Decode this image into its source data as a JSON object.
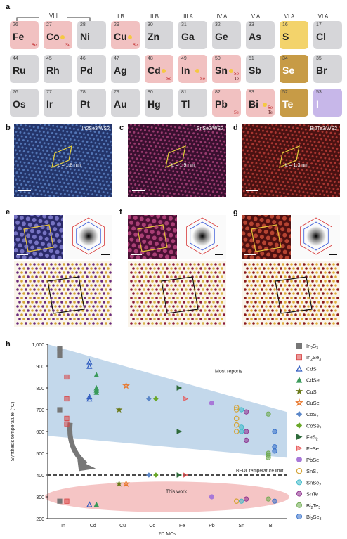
{
  "panel_labels": {
    "a": "a",
    "b": "b",
    "c": "c",
    "d": "d",
    "e": "e",
    "f": "f",
    "g": "g",
    "h": "h"
  },
  "periodic_table": {
    "group_headers": [
      "VIII",
      "I B",
      "II B",
      "III A",
      "IV A",
      "V A",
      "VI A",
      "VI A"
    ],
    "rows": [
      [
        {
          "num": "26",
          "sym": "Fe",
          "color": "pink",
          "marks": [
            "Se"
          ],
          "star": false
        },
        {
          "num": "27",
          "sym": "Co",
          "color": "pink",
          "marks": [
            "Se"
          ],
          "star": true
        },
        {
          "num": "28",
          "sym": "Ni",
          "color": "gray",
          "marks": [],
          "star": false
        },
        {
          "num": "29",
          "sym": "Cu",
          "color": "pink",
          "marks": [
            "Se"
          ],
          "star": true
        },
        {
          "num": "30",
          "sym": "Zn",
          "color": "gray",
          "marks": [],
          "star": false
        },
        {
          "num": "31",
          "sym": "Ga",
          "color": "gray",
          "marks": [],
          "star": false
        },
        {
          "num": "32",
          "sym": "Ge",
          "color": "gray",
          "marks": [],
          "star": false
        },
        {
          "num": "33",
          "sym": "As",
          "color": "gray",
          "marks": [],
          "star": false
        },
        {
          "num": "16",
          "sym": "S",
          "color": "yellow",
          "marks": [],
          "star": false
        },
        {
          "num": "17",
          "sym": "Cl",
          "color": "gray",
          "marks": [],
          "star": false
        }
      ],
      [
        {
          "num": "44",
          "sym": "Ru",
          "color": "gray",
          "marks": [],
          "star": false
        },
        {
          "num": "45",
          "sym": "Rh",
          "color": "gray",
          "marks": [],
          "star": false
        },
        {
          "num": "46",
          "sym": "Pd",
          "color": "gray",
          "marks": [],
          "star": false
        },
        {
          "num": "47",
          "sym": "Ag",
          "color": "gray",
          "marks": [],
          "star": false
        },
        {
          "num": "48",
          "sym": "Cd",
          "color": "pink",
          "marks": [
            "Se"
          ],
          "star": true
        },
        {
          "num": "49",
          "sym": "In",
          "color": "pink",
          "marks": [
            "Se"
          ],
          "star": true
        },
        {
          "num": "50",
          "sym": "Sn",
          "color": "pink",
          "marks": [
            "Se",
            "Te"
          ],
          "star": true
        },
        {
          "num": "51",
          "sym": "Sb",
          "color": "gray",
          "marks": [],
          "star": false
        },
        {
          "num": "34",
          "sym": "Se",
          "color": "gold",
          "marks": [],
          "star": false
        },
        {
          "num": "35",
          "sym": "Br",
          "color": "gray",
          "marks": [],
          "star": false
        }
      ],
      [
        {
          "num": "76",
          "sym": "Os",
          "color": "gray",
          "marks": [],
          "star": false
        },
        {
          "num": "77",
          "sym": "Ir",
          "color": "gray",
          "marks": [],
          "star": false
        },
        {
          "num": "78",
          "sym": "Pt",
          "color": "gray",
          "marks": [],
          "star": false
        },
        {
          "num": "79",
          "sym": "Au",
          "color": "gray",
          "marks": [],
          "star": false
        },
        {
          "num": "80",
          "sym": "Hg",
          "color": "gray",
          "marks": [],
          "star": false
        },
        {
          "num": "81",
          "sym": "Tl",
          "color": "gray",
          "marks": [],
          "star": false
        },
        {
          "num": "82",
          "sym": "Pb",
          "color": "pink",
          "marks": [
            "Se"
          ],
          "star": false
        },
        {
          "num": "83",
          "sym": "Bi",
          "color": "pink",
          "marks": [
            "Se",
            "Te"
          ],
          "star": true
        },
        {
          "num": "52",
          "sym": "Te",
          "color": "gold",
          "marks": [],
          "star": false
        },
        {
          "num": "53",
          "sym": "I",
          "color": "purple",
          "marks": [],
          "star": false
        }
      ]
    ]
  },
  "micro_row1": [
    {
      "label": "In2Se3/WS2",
      "lattice": "L = 1.8 nm",
      "color1": "#24356b",
      "color2": "#5e86c8"
    },
    {
      "label": "SnSe2/WS2",
      "lattice": "L = 1.9 nm",
      "color1": "#3a1030",
      "color2": "#b0457e"
    },
    {
      "label": "Bi2Te3/WS2",
      "lattice": "L = 1.3 nm",
      "color1": "#4a1212",
      "color2": "#c0403a"
    }
  ],
  "micro_row2": [
    {
      "color1": "#2a2a6a",
      "color2": "#8a86d8",
      "atom": "#d4a437",
      "atom2": "#6a2a7a"
    },
    {
      "color1": "#4a1034",
      "color2": "#c04a86",
      "atom": "#d8b34a",
      "atom2": "#8a1c3a"
    },
    {
      "color1": "#4e1010",
      "color2": "#d0503a",
      "atom": "#e0ad3a",
      "atom2": "#8a1a1a"
    }
  ],
  "chart_data": {
    "type": "scatter",
    "xlabel": "2D MCs",
    "ylabel": "Synthesis temperature (°C)",
    "categories": [
      "In",
      "Cd",
      "Cu",
      "Co",
      "Fe",
      "Pb",
      "Sn",
      "Bi"
    ],
    "ylim": [
      200,
      1000
    ],
    "yticks": [
      200,
      300,
      400,
      500,
      600,
      700,
      800,
      900,
      1000
    ],
    "yticklabels": [
      "200",
      "300",
      "400",
      "500",
      "600",
      "700",
      "800",
      "900",
      "1,000"
    ],
    "annotations": [
      "Most reports",
      "BEOL temperature limit",
      "This work"
    ],
    "beol_limit": 400,
    "series": [
      {
        "name": "In2S3",
        "color": "#777777",
        "marker": "square",
        "points": [
          [
            "In",
            980
          ],
          [
            "In",
            970
          ],
          [
            "In",
            950
          ],
          [
            "In",
            700
          ],
          [
            "In",
            280
          ]
        ]
      },
      {
        "name": "In2Se3",
        "color": "#d94545",
        "marker": "halfsquare",
        "points": [
          [
            "In",
            850
          ],
          [
            "In",
            750
          ],
          [
            "In",
            660
          ],
          [
            "In",
            635
          ],
          [
            "In",
            280
          ]
        ]
      },
      {
        "name": "CdS",
        "color": "#2f5bbf",
        "marker": "triangle-open",
        "points": [
          [
            "Cd",
            920
          ],
          [
            "Cd",
            900
          ],
          [
            "Cd",
            760
          ],
          [
            "Cd",
            750
          ],
          [
            "Cd",
            265
          ]
        ]
      },
      {
        "name": "CdSe",
        "color": "#3a9a5a",
        "marker": "triangle",
        "points": [
          [
            "Cd",
            860
          ],
          [
            "Cd",
            800
          ],
          [
            "Cd",
            790
          ],
          [
            "Cd",
            780
          ],
          [
            "Cd",
            265
          ]
        ]
      },
      {
        "name": "CuS",
        "color": "#6b7a1a",
        "marker": "star",
        "points": [
          [
            "Cu",
            700
          ],
          [
            "Cu",
            360
          ]
        ]
      },
      {
        "name": "CuSe",
        "color": "#e8762a",
        "marker": "star-open",
        "points": [
          [
            "Cu",
            810
          ],
          [
            "Cu",
            360
          ]
        ]
      },
      {
        "name": "CoS2",
        "color": "#5b87c8",
        "marker": "diamond",
        "points": [
          [
            "Co",
            750
          ],
          [
            "Co",
            400
          ]
        ]
      },
      {
        "name": "CoSe2",
        "color": "#6aa82a",
        "marker": "diamond",
        "points": [
          [
            "Co",
            750
          ],
          [
            "Co",
            400
          ]
        ]
      },
      {
        "name": "FeS2",
        "color": "#2e6b3a",
        "marker": "triangle-right",
        "points": [
          [
            "Fe",
            800
          ],
          [
            "Fe",
            600
          ],
          [
            "Fe",
            400
          ]
        ]
      },
      {
        "name": "FeSe",
        "color": "#e85050",
        "marker": "triangle-right-half",
        "points": [
          [
            "Fe",
            750
          ],
          [
            "Fe",
            400
          ]
        ]
      },
      {
        "name": "PbSe",
        "color": "#a878d8",
        "marker": "circle",
        "points": [
          [
            "Pb",
            730
          ],
          [
            "Pb",
            300
          ]
        ]
      },
      {
        "name": "SnS2",
        "color": "#d4a437",
        "marker": "circle-open",
        "points": [
          [
            "Sn",
            710
          ],
          [
            "Sn",
            700
          ],
          [
            "Sn",
            660
          ],
          [
            "Sn",
            630
          ],
          [
            "Sn",
            600
          ],
          [
            "Sn",
            280
          ]
        ]
      },
      {
        "name": "SnSe2",
        "color": "#3ab8c8",
        "marker": "halfcircle",
        "points": [
          [
            "Sn",
            700
          ],
          [
            "Sn",
            620
          ],
          [
            "Sn",
            600
          ],
          [
            "Sn",
            280
          ]
        ]
      },
      {
        "name": "SnTe",
        "color": "#8a2a8a",
        "marker": "halfcircle",
        "points": [
          [
            "Sn",
            690
          ],
          [
            "Sn",
            600
          ],
          [
            "Sn",
            560
          ],
          [
            "Sn",
            290
          ]
        ]
      },
      {
        "name": "Bi2Te3",
        "color": "#6aa84a",
        "marker": "halfcircle",
        "points": [
          [
            "Bi",
            680
          ],
          [
            "Bi",
            500
          ],
          [
            "Bi",
            490
          ],
          [
            "Bi",
            480
          ],
          [
            "Bi",
            290
          ]
        ]
      },
      {
        "name": "Bi2Se3",
        "color": "#2f6bc8",
        "marker": "halfcircle",
        "points": [
          [
            "Bi",
            600
          ],
          [
            "Bi",
            530
          ],
          [
            "Bi",
            510
          ],
          [
            "Bi",
            280
          ]
        ]
      }
    ],
    "legend": {
      "placement": "right"
    }
  }
}
